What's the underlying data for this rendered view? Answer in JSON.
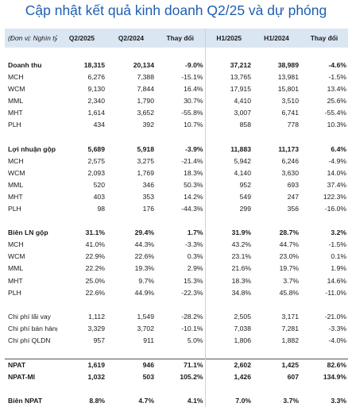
{
  "title": "Cập nhật kết quả kinh doanh Q2/25 và dự phóng",
  "header": [
    "(Đơn vị: Nghìn tỷ)",
    "Q2/2025",
    "Q2/2024",
    "Thay đổi",
    "H1/2025",
    "H1/2024",
    "Thay đổi"
  ],
  "rows": [
    {
      "label": "Doanh thu",
      "q2_2025": "18,315",
      "q2_2024": "20,134",
      "q_change": "-9.0%",
      "h1_2025": "37,212",
      "h1_2024": "38,989",
      "h_change": "-4.6%"
    },
    {
      "label": "MCH",
      "q2_2025": "6,276",
      "q2_2024": "7,388",
      "q_change": "-15.1%",
      "h1_2025": "13,765",
      "h1_2024": "13,981",
      "h_change": "-1.5%"
    },
    {
      "label": "WCM",
      "q2_2025": "9,130",
      "q2_2024": "7,844",
      "q_change": "16.4%",
      "h1_2025": "17,915",
      "h1_2024": "15,801",
      "h_change": "13.4%"
    },
    {
      "label": "MML",
      "q2_2025": "2,340",
      "q2_2024": "1,790",
      "q_change": "30.7%",
      "h1_2025": "4,410",
      "h1_2024": "3,510",
      "h_change": "25.6%"
    },
    {
      "label": "MHT",
      "q2_2025": "1,614",
      "q2_2024": "3,652",
      "q_change": "-55.8%",
      "h1_2025": "3,007",
      "h1_2024": "6,741",
      "h_change": "-55.4%"
    },
    {
      "label": "PLH",
      "q2_2025": "434",
      "q2_2024": "392",
      "q_change": "10.7%",
      "h1_2025": "858",
      "h1_2024": "778",
      "h_change": "10.3%"
    },
    {
      "label": "Lợi nhuận gộp",
      "q2_2025": "5,689",
      "q2_2024": "5,918",
      "q_change": "-3.9%",
      "h1_2025": "11,883",
      "h1_2024": "11,173",
      "h_change": "6.4%"
    },
    {
      "label": "MCH",
      "q2_2025": "2,575",
      "q2_2024": "3,275",
      "q_change": "-21.4%",
      "h1_2025": "5,942",
      "h1_2024": "6,246",
      "h_change": "-4.9%"
    },
    {
      "label": "WCM",
      "q2_2025": "2,093",
      "q2_2024": "1,769",
      "q_change": "18.3%",
      "h1_2025": "4,140",
      "h1_2024": "3,630",
      "h_change": "14.0%"
    },
    {
      "label": "MML",
      "q2_2025": "520",
      "q2_2024": "346",
      "q_change": "50.3%",
      "h1_2025": "952",
      "h1_2024": "693",
      "h_change": "37.4%"
    },
    {
      "label": "MHT",
      "q2_2025": "403",
      "q2_2024": "353",
      "q_change": "14.2%",
      "h1_2025": "549",
      "h1_2024": "247",
      "h_change": "122.3%"
    },
    {
      "label": "PLH",
      "q2_2025": "98",
      "q2_2024": "176",
      "q_change": "-44.3%",
      "h1_2025": "299",
      "h1_2024": "356",
      "h_change": "-16.0%"
    },
    {
      "label": "Biên LN gộp",
      "q2_2025": "31.1%",
      "q2_2024": "29.4%",
      "q_change": "1.7%",
      "h1_2025": "31.9%",
      "h1_2024": "28.7%",
      "h_change": "3.2%"
    },
    {
      "label": "MCH",
      "q2_2025": "41.0%",
      "q2_2024": "44.3%",
      "q_change": "-3.3%",
      "h1_2025": "43.2%",
      "h1_2024": "44.7%",
      "h_change": "-1.5%"
    },
    {
      "label": "WCM",
      "q2_2025": "22.9%",
      "q2_2024": "22.6%",
      "q_change": "0.3%",
      "h1_2025": "23.1%",
      "h1_2024": "23.0%",
      "h_change": "0.1%"
    },
    {
      "label": "MML",
      "q2_2025": "22.2%",
      "q2_2024": "19.3%",
      "q_change": "2.9%",
      "h1_2025": "21.6%",
      "h1_2024": "19.7%",
      "h_change": "1.9%"
    },
    {
      "label": "MHT",
      "q2_2025": "25.0%",
      "q2_2024": "9.7%",
      "q_change": "15.3%",
      "h1_2025": "18.3%",
      "h1_2024": "3.7%",
      "h_change": "14.6%"
    },
    {
      "label": "PLH",
      "q2_2025": "22.6%",
      "q2_2024": "44.9%",
      "q_change": "-22.3%",
      "h1_2025": "34.8%",
      "h1_2024": "45.8%",
      "h_change": "-11.0%"
    },
    {
      "label": "Chi phí lãi vay",
      "q2_2025": "1,112",
      "q2_2024": "1,549",
      "q_change": "-28.2%",
      "h1_2025": "2,505",
      "h1_2024": "3,171",
      "h_change": "-21.0%"
    },
    {
      "label": "Chi phí bán hàng",
      "q2_2025": "3,329",
      "q2_2024": "3,702",
      "q_change": "-10.1%",
      "h1_2025": "7,038",
      "h1_2024": "7,281",
      "h_change": "-3.3%"
    },
    {
      "label": "Chi phí QLDN",
      "q2_2025": "957",
      "q2_2024": "911",
      "q_change": "5.0%",
      "h1_2025": "1,806",
      "h1_2024": "1,882",
      "h_change": "-4.0%"
    },
    {
      "label": "NPAT",
      "q2_2025": "1,619",
      "q2_2024": "946",
      "q_change": "71.1%",
      "h1_2025": "2,602",
      "h1_2024": "1,425",
      "h_change": "82.6%"
    },
    {
      "label": "NPAT-MI",
      "q2_2025": "1,032",
      "q2_2024": "503",
      "q_change": "105.2%",
      "h1_2025": "1,426",
      "h1_2024": "607",
      "h_change": "134.9%"
    },
    {
      "label": "Biên NPAT",
      "q2_2025": "8.8%",
      "q2_2024": "4.7%",
      "q_change": "4.1%",
      "h1_2025": "7.0%",
      "h1_2024": "3.7%",
      "h_change": "3.3%"
    }
  ]
}
